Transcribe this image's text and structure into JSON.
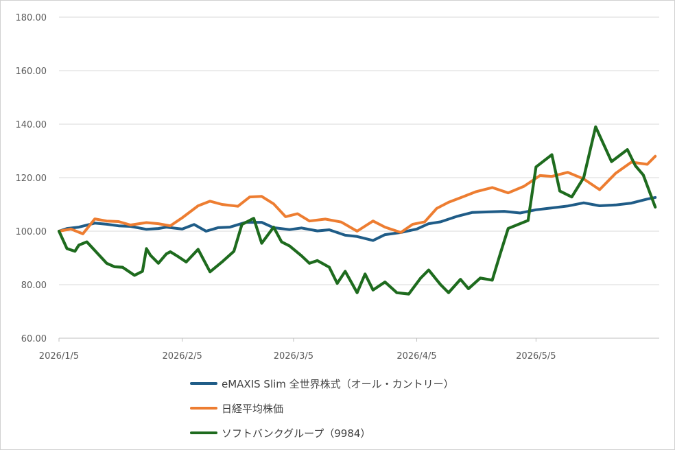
{
  "chart_data": {
    "type": "line",
    "title": "",
    "xlabel": "",
    "ylabel": "",
    "ylim": [
      60,
      180
    ],
    "y_ticks": [
      "60.00",
      "80.00",
      "100.00",
      "120.00",
      "140.00",
      "160.00",
      "180.00"
    ],
    "x_tick_labels": [
      "2026/1/5",
      "2026/2/5",
      "2026/3/5",
      "2026/4/5",
      "2026/5/5"
    ],
    "x_tick_dates": [
      "2026-01-05",
      "2026-02-05",
      "2026-03-05",
      "2026-04-05",
      "2026-05-05"
    ],
    "xlim": [
      "2026-01-05",
      "2026-06-05"
    ],
    "grid": "horizontal",
    "legend_position": "bottom",
    "series": [
      {
        "name": "eMAXIS Slim 全世界株式（オール・カントリー）",
        "color": "#1f5c87",
        "x": [
          "2026-01-05",
          "2026-01-07",
          "2026-01-10",
          "2026-01-14",
          "2026-01-17",
          "2026-01-20",
          "2026-01-23",
          "2026-01-27",
          "2026-01-30",
          "2026-02-01",
          "2026-02-05",
          "2026-02-08",
          "2026-02-11",
          "2026-02-14",
          "2026-02-17",
          "2026-02-21",
          "2026-02-25",
          "2026-02-28",
          "2026-03-04",
          "2026-03-07",
          "2026-03-11",
          "2026-03-14",
          "2026-03-18",
          "2026-03-21",
          "2026-03-25",
          "2026-03-28",
          "2026-04-01",
          "2026-04-05",
          "2026-04-08",
          "2026-04-11",
          "2026-04-15",
          "2026-04-19",
          "2026-04-23",
          "2026-04-27",
          "2026-05-01",
          "2026-05-05",
          "2026-05-09",
          "2026-05-13",
          "2026-05-17",
          "2026-05-21",
          "2026-05-25",
          "2026-05-29",
          "2026-06-02",
          "2026-06-04"
        ],
        "values": [
          100.0,
          101.0,
          101.5,
          103.0,
          102.6,
          102.0,
          101.8,
          100.7,
          101.0,
          101.5,
          100.8,
          102.5,
          100.0,
          101.3,
          101.5,
          103.3,
          103.3,
          101.3,
          100.6,
          101.2,
          100.1,
          100.5,
          98.5,
          98.0,
          96.5,
          98.7,
          99.5,
          100.8,
          102.8,
          103.5,
          105.5,
          107.0,
          107.2,
          107.4,
          106.8,
          108.0,
          108.7,
          109.4,
          110.6,
          109.5,
          109.8,
          110.5,
          112.0,
          112.6
        ]
      },
      {
        "name": "日経平均株価",
        "color": "#ed7d31",
        "x": [
          "2026-01-05",
          "2026-01-08",
          "2026-01-11",
          "2026-01-14",
          "2026-01-17",
          "2026-01-20",
          "2026-01-23",
          "2026-01-27",
          "2026-01-30",
          "2026-02-02",
          "2026-02-05",
          "2026-02-09",
          "2026-02-12",
          "2026-02-15",
          "2026-02-19",
          "2026-02-22",
          "2026-02-25",
          "2026-02-28",
          "2026-03-03",
          "2026-03-06",
          "2026-03-09",
          "2026-03-13",
          "2026-03-17",
          "2026-03-21",
          "2026-03-25",
          "2026-03-28",
          "2026-04-01",
          "2026-04-04",
          "2026-04-07",
          "2026-04-10",
          "2026-04-13",
          "2026-04-16",
          "2026-04-20",
          "2026-04-24",
          "2026-04-28",
          "2026-05-02",
          "2026-05-06",
          "2026-05-09",
          "2026-05-13",
          "2026-05-17",
          "2026-05-21",
          "2026-05-25",
          "2026-05-29",
          "2026-06-02",
          "2026-06-04"
        ],
        "values": [
          100.0,
          100.8,
          99.0,
          104.6,
          103.8,
          103.6,
          102.3,
          103.2,
          102.8,
          102.0,
          105.0,
          109.5,
          111.2,
          110.0,
          109.3,
          112.8,
          113.0,
          110.2,
          105.4,
          106.5,
          103.8,
          104.5,
          103.4,
          100.0,
          103.8,
          101.5,
          99.5,
          102.6,
          103.5,
          108.5,
          110.8,
          112.5,
          114.8,
          116.3,
          114.3,
          116.8,
          120.8,
          120.5,
          122.0,
          119.5,
          115.5,
          121.6,
          125.8,
          125.0,
          128.0
        ]
      },
      {
        "name": "ソフトバンクグループ（9984）",
        "color": "#1e6b1e",
        "x": [
          "2026-01-05",
          "2026-01-07",
          "2026-01-09",
          "2026-01-10",
          "2026-01-12",
          "2026-01-17",
          "2026-01-19",
          "2026-01-21",
          "2026-01-24",
          "2026-01-26",
          "2026-01-27",
          "2026-01-28",
          "2026-01-30",
          "2026-02-01",
          "2026-02-02",
          "2026-02-04",
          "2026-02-06",
          "2026-02-09",
          "2026-02-12",
          "2026-02-15",
          "2026-02-18",
          "2026-02-20",
          "2026-02-23",
          "2026-02-25",
          "2026-02-28",
          "2026-03-02",
          "2026-03-04",
          "2026-03-07",
          "2026-03-09",
          "2026-03-11",
          "2026-03-14",
          "2026-03-16",
          "2026-03-18",
          "2026-03-21",
          "2026-03-23",
          "2026-03-25",
          "2026-03-28",
          "2026-03-31",
          "2026-04-03",
          "2026-04-06",
          "2026-04-08",
          "2026-04-11",
          "2026-04-13",
          "2026-04-16",
          "2026-04-18",
          "2026-04-21",
          "2026-04-24",
          "2026-04-26",
          "2026-04-28",
          "2026-05-03",
          "2026-05-05",
          "2026-05-09",
          "2026-05-11",
          "2026-05-14",
          "2026-05-17",
          "2026-05-20",
          "2026-05-22",
          "2026-05-24",
          "2026-05-28",
          "2026-05-30",
          "2026-06-01",
          "2026-06-04"
        ],
        "values": [
          100.0,
          93.5,
          92.5,
          94.8,
          96.0,
          88.0,
          86.7,
          86.5,
          83.5,
          85.0,
          93.5,
          91.0,
          88.0,
          91.5,
          92.3,
          90.5,
          88.5,
          93.2,
          84.8,
          88.5,
          92.5,
          102.5,
          104.8,
          95.5,
          101.5,
          96.0,
          94.5,
          90.8,
          88.0,
          89.0,
          86.5,
          80.5,
          85.0,
          77.0,
          84.0,
          78.0,
          81.0,
          77.0,
          76.5,
          82.5,
          85.5,
          80.0,
          77.0,
          82.0,
          78.5,
          82.5,
          81.7,
          91.5,
          101.0,
          104.0,
          124.0,
          128.6,
          115.0,
          112.8,
          120.0,
          139.0,
          132.5,
          126.0,
          130.5,
          124.5,
          121.0,
          109.0
        ]
      }
    ]
  }
}
